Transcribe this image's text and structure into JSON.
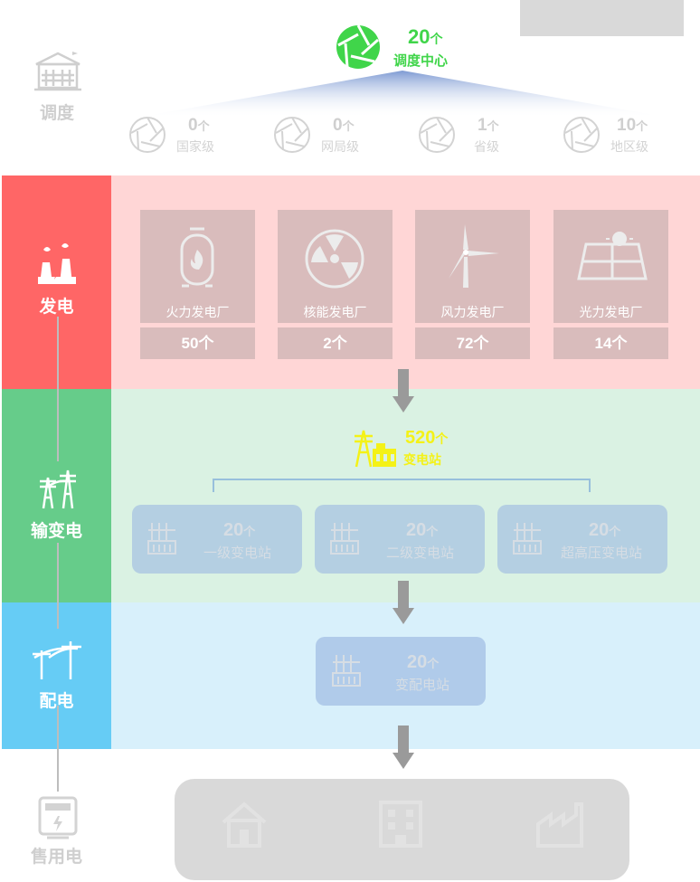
{
  "colors": {
    "generation": "#ff6666",
    "generation_bg": "#ffd6d6",
    "transmission": "#66cc8a",
    "transmission_bg": "#daf2e3",
    "distribution": "#66ccf5",
    "distribution_bg": "#d8f0fb",
    "dispatch_center": "#40d54a",
    "substation_hub": "#f4f217"
  },
  "dispatch": {
    "label": "调度",
    "center": {
      "count": "20",
      "unit": "个",
      "label": "调度中心"
    },
    "levels": [
      {
        "count": "0",
        "unit": "个",
        "label": "国家级"
      },
      {
        "count": "0",
        "unit": "个",
        "label": "网局级"
      },
      {
        "count": "1",
        "unit": "个",
        "label": "省级"
      },
      {
        "count": "10",
        "unit": "个",
        "label": "地区级"
      }
    ]
  },
  "generation": {
    "label": "发电",
    "plants": [
      {
        "label": "火力发电厂",
        "count": "50个",
        "icon": "thermal-plant-icon"
      },
      {
        "label": "核能发电厂",
        "count": "2个",
        "icon": "nuclear-plant-icon"
      },
      {
        "label": "风力发电厂",
        "count": "72个",
        "icon": "wind-turbine-icon"
      },
      {
        "label": "光力发电厂",
        "count": "14个",
        "icon": "solar-panel-icon"
      }
    ]
  },
  "transmission": {
    "label": "输变电",
    "hub": {
      "count": "520",
      "unit": "个",
      "label": "变电站"
    },
    "stations": [
      {
        "count": "20",
        "unit": "个",
        "label": "一级变电站"
      },
      {
        "count": "20",
        "unit": "个",
        "label": "二级变电站"
      },
      {
        "count": "20",
        "unit": "个",
        "label": "超高压变电站"
      }
    ]
  },
  "distribution": {
    "label": "配电",
    "station": {
      "count": "20",
      "unit": "个",
      "label": "变配电站"
    }
  },
  "sales": {
    "label": "售用电"
  }
}
